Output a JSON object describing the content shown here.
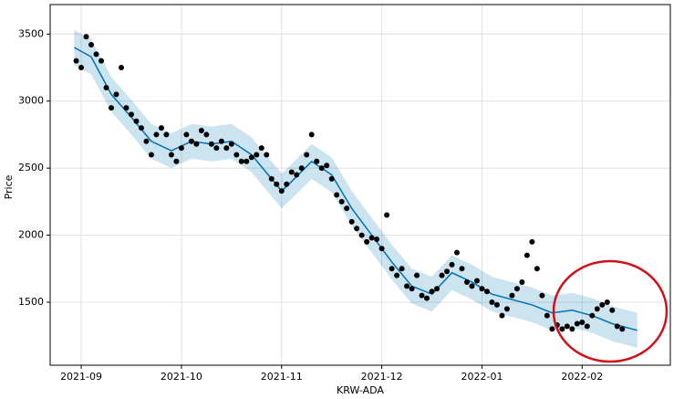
{
  "chart_data": {
    "type": "line",
    "xlabel": "KRW-ADA",
    "ylabel": "Price",
    "xlim": [
      -0.31,
      5.88
    ],
    "ylim": [
      1030,
      3720
    ],
    "xticks": [
      {
        "value": 0,
        "label": "2021-09"
      },
      {
        "value": 1,
        "label": "2021-10"
      },
      {
        "value": 2,
        "label": "2021-11"
      },
      {
        "value": 3,
        "label": "2021-12"
      },
      {
        "value": 4,
        "label": "2022-01"
      },
      {
        "value": 5,
        "label": "2022-02"
      }
    ],
    "yticks": [
      1500,
      2000,
      2500,
      3000,
      3500
    ],
    "grid": true,
    "series": [
      {
        "color": "#0072B2",
        "x": [
          -0.07,
          0.1,
          0.3,
          0.5,
          0.7,
          0.9,
          1.1,
          1.3,
          1.5,
          1.7,
          1.9,
          2.0,
          2.1,
          2.3,
          2.5,
          2.7,
          2.9,
          3.1,
          3.3,
          3.5,
          3.7,
          3.9,
          4.1,
          4.3,
          4.5,
          4.7,
          4.9,
          5.1,
          5.3,
          5.55
        ],
        "values": [
          3400,
          3330,
          3050,
          2880,
          2700,
          2630,
          2700,
          2680,
          2700,
          2600,
          2420,
          2330,
          2400,
          2550,
          2450,
          2200,
          2000,
          1800,
          1620,
          1560,
          1720,
          1650,
          1560,
          1520,
          1480,
          1420,
          1440,
          1400,
          1340,
          1290
        ],
        "upper": [
          3530,
          3460,
          3180,
          3010,
          2830,
          2760,
          2830,
          2810,
          2830,
          2730,
          2550,
          2460,
          2530,
          2680,
          2580,
          2330,
          2130,
          1930,
          1750,
          1690,
          1850,
          1780,
          1690,
          1650,
          1610,
          1550,
          1570,
          1530,
          1470,
          1420
        ],
        "lower": [
          3270,
          3200,
          2920,
          2750,
          2570,
          2500,
          2570,
          2550,
          2570,
          2470,
          2290,
          2200,
          2270,
          2420,
          2320,
          2070,
          1870,
          1670,
          1490,
          1430,
          1590,
          1520,
          1430,
          1390,
          1350,
          1290,
          1310,
          1270,
          1210,
          1160
        ]
      },
      {
        "color": "#000000",
        "marker": "dot",
        "x": [
          -0.05,
          0,
          0.05,
          0.1,
          0.15,
          0.2,
          0.25,
          0.3,
          0.35,
          0.4,
          0.45,
          0.5,
          0.55,
          0.6,
          0.65,
          0.7,
          0.75,
          0.8,
          0.85,
          0.9,
          0.95,
          1.0,
          1.05,
          1.1,
          1.15,
          1.2,
          1.25,
          1.3,
          1.35,
          1.4,
          1.45,
          1.5,
          1.55,
          1.6,
          1.65,
          1.7,
          1.75,
          1.8,
          1.85,
          1.9,
          1.95,
          2.0,
          2.05,
          2.1,
          2.15,
          2.2,
          2.25,
          2.3,
          2.35,
          2.4,
          2.45,
          2.5,
          2.55,
          2.6,
          2.65,
          2.7,
          2.75,
          2.8,
          2.85,
          2.9,
          2.95,
          3.0,
          3.05,
          3.1,
          3.15,
          3.2,
          3.25,
          3.3,
          3.35,
          3.4,
          3.45,
          3.5,
          3.55,
          3.6,
          3.65,
          3.7,
          3.75,
          3.8,
          3.85,
          3.9,
          3.95,
          4.0,
          4.05,
          4.1,
          4.15,
          4.2,
          4.25,
          4.3,
          4.35,
          4.4,
          4.45,
          4.5,
          4.55,
          4.6,
          4.65,
          4.7,
          4.75,
          4.8,
          4.85,
          4.9,
          4.95,
          5.0,
          5.05,
          5.1,
          5.15,
          5.2,
          5.25,
          5.3,
          5.35,
          5.4
        ],
        "values": [
          3300,
          3250,
          3480,
          3420,
          3350,
          3300,
          3100,
          2950,
          3050,
          3250,
          2950,
          2900,
          2850,
          2800,
          2700,
          2600,
          2750,
          2800,
          2750,
          2600,
          2550,
          2650,
          2750,
          2700,
          2680,
          2780,
          2750,
          2680,
          2650,
          2700,
          2650,
          2680,
          2600,
          2550,
          2550,
          2580,
          2600,
          2650,
          2600,
          2420,
          2380,
          2330,
          2380,
          2470,
          2450,
          2500,
          2600,
          2750,
          2550,
          2500,
          2520,
          2420,
          2300,
          2250,
          2200,
          2100,
          2050,
          2000,
          1950,
          1980,
          1970,
          1900,
          2150,
          1750,
          1700,
          1750,
          1620,
          1600,
          1700,
          1550,
          1530,
          1580,
          1600,
          1700,
          1730,
          1780,
          1870,
          1750,
          1650,
          1620,
          1660,
          1600,
          1580,
          1500,
          1480,
          1400,
          1450,
          1550,
          1600,
          1650,
          1850,
          1950,
          1750,
          1550,
          1400,
          1300,
          1330,
          1300,
          1320,
          1300,
          1340,
          1350,
          1320,
          1400,
          1450,
          1480,
          1500,
          1440,
          1320,
          1300
        ]
      }
    ]
  }
}
